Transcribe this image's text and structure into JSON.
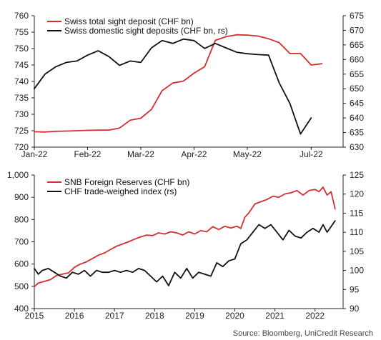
{
  "colors": {
    "red": "#d32f2f",
    "black": "#111111",
    "axis": "#222222"
  },
  "source": "Source: Bloomberg, UniCredit Research",
  "chart_data": [
    {
      "type": "line",
      "legend_position": "top-left",
      "grid": false,
      "xlabels": [
        "Jan-22",
        "Feb-22",
        "Mar-22",
        "Apr-22",
        "May-22",
        "Jul-22"
      ],
      "xlabel_positions": [
        0,
        5,
        10,
        15,
        20,
        26
      ],
      "xlim": [
        0,
        29
      ],
      "ylim_left": [
        720,
        760
      ],
      "yticks_left": [
        "720",
        "725",
        "730",
        "735",
        "740",
        "745",
        "750",
        "755",
        "760"
      ],
      "ylim_right": [
        630,
        675
      ],
      "yticks_right": [
        "630",
        "635",
        "640",
        "645",
        "650",
        "655",
        "660",
        "665",
        "670",
        "675"
      ],
      "series": [
        {
          "name": "Swiss total sight deposit (CHF bn)",
          "axis": "left",
          "color": "#d32f2f",
          "x": [
            0,
            1,
            2,
            3,
            4,
            5,
            6,
            7,
            8,
            9,
            10,
            11,
            12,
            13,
            14,
            15,
            16,
            17,
            18,
            19,
            20,
            21,
            22,
            23,
            24,
            25,
            26,
            27
          ],
          "values": [
            724.7,
            724.6,
            724.8,
            724.9,
            725.0,
            725.1,
            725.2,
            725.2,
            725.8,
            728.2,
            728.8,
            731.5,
            737.2,
            739.5,
            740.1,
            742.5,
            744.5,
            752.5,
            753.6,
            754.2,
            754.1,
            753.8,
            753.0,
            751.8,
            748.5,
            748.5,
            745.0,
            745.4
          ]
        },
        {
          "name": "Swiss domestic sight deposits (CHF bn, rs)",
          "axis": "right",
          "color": "#111111",
          "x": [
            0,
            1,
            2,
            3,
            4,
            5,
            6,
            7,
            8,
            9,
            10,
            11,
            12,
            13,
            14,
            15,
            16,
            17,
            18,
            19,
            20,
            21,
            22,
            23,
            24,
            25,
            26,
            27
          ],
          "values": [
            650,
            655,
            657.5,
            659,
            659.5,
            661.5,
            663,
            661,
            658,
            659.5,
            659,
            664,
            666.5,
            665.5,
            667,
            666.5,
            663.8,
            665.5,
            664,
            662.5,
            662,
            661.7,
            661.5,
            652,
            645,
            634.5,
            640,
            null
          ]
        }
      ]
    },
    {
      "type": "line",
      "legend_position": "top-left",
      "grid": false,
      "xlabels": [
        "2015",
        "2016",
        "2017",
        "2018",
        "2019",
        "2020",
        "2021",
        "2022"
      ],
      "xlim": [
        2015,
        2022.7
      ],
      "ylim_left": [
        400,
        1000
      ],
      "yticks_left": [
        "400",
        "500",
        "600",
        "700",
        "800",
        "900",
        "1,000"
      ],
      "ylim_right": [
        90,
        125
      ],
      "yticks_right": [
        "90",
        "95",
        "100",
        "105",
        "110",
        "115",
        "120",
        "125"
      ],
      "series": [
        {
          "name": "SNB Foreign Reserves (CHF bn)",
          "axis": "left",
          "color": "#d32f2f",
          "x": [
            2015.0,
            2015.1,
            2015.25,
            2015.4,
            2015.55,
            2015.7,
            2015.85,
            2016.0,
            2016.15,
            2016.3,
            2016.45,
            2016.6,
            2016.75,
            2016.9,
            2017.05,
            2017.2,
            2017.35,
            2017.5,
            2017.65,
            2017.8,
            2017.95,
            2018.1,
            2018.25,
            2018.4,
            2018.55,
            2018.7,
            2018.85,
            2019.0,
            2019.15,
            2019.3,
            2019.45,
            2019.6,
            2019.75,
            2019.9,
            2020.05,
            2020.15,
            2020.25,
            2020.35,
            2020.5,
            2020.65,
            2020.8,
            2020.95,
            2021.1,
            2021.25,
            2021.4,
            2021.55,
            2021.7,
            2021.85,
            2022.0,
            2022.1,
            2022.2,
            2022.3,
            2022.4,
            2022.5
          ],
          "values": [
            498,
            515,
            522,
            530,
            548,
            555,
            560,
            585,
            600,
            610,
            625,
            640,
            650,
            665,
            680,
            690,
            700,
            712,
            722,
            730,
            728,
            740,
            735,
            745,
            740,
            730,
            745,
            735,
            750,
            745,
            768,
            755,
            770,
            762,
            770,
            760,
            810,
            830,
            870,
            880,
            890,
            905,
            900,
            915,
            920,
            930,
            910,
            930,
            935,
            925,
            945,
            910,
            925,
            848
          ]
        },
        {
          "name": "CHF trade-weighed index (rs)",
          "axis": "right",
          "color": "#111111",
          "x": [
            2015.0,
            2015.1,
            2015.2,
            2015.35,
            2015.5,
            2015.65,
            2015.8,
            2015.95,
            2016.1,
            2016.25,
            2016.4,
            2016.55,
            2016.7,
            2016.85,
            2017.0,
            2017.15,
            2017.3,
            2017.45,
            2017.6,
            2017.75,
            2017.9,
            2018.05,
            2018.2,
            2018.35,
            2018.5,
            2018.65,
            2018.8,
            2018.95,
            2019.1,
            2019.25,
            2019.4,
            2019.55,
            2019.7,
            2019.85,
            2020.0,
            2020.15,
            2020.3,
            2020.45,
            2020.6,
            2020.75,
            2020.9,
            2021.05,
            2021.2,
            2021.35,
            2021.5,
            2021.65,
            2021.8,
            2021.95,
            2022.1,
            2022.2,
            2022.3,
            2022.4,
            2022.5
          ],
          "values": [
            100.5,
            99,
            100,
            100.5,
            99.5,
            98.5,
            98,
            99.5,
            99,
            100,
            98.5,
            100,
            99.5,
            99.5,
            100,
            99.5,
            100,
            99.5,
            100.5,
            100,
            98.5,
            97,
            98.5,
            96,
            99.5,
            98,
            100.5,
            98,
            99.5,
            99,
            98.5,
            102,
            101,
            102.5,
            103,
            107,
            108,
            110,
            112,
            111,
            112,
            110,
            108,
            110.5,
            109,
            108.5,
            110,
            111,
            110,
            112,
            110,
            111.5,
            113
          ]
        }
      ]
    }
  ]
}
